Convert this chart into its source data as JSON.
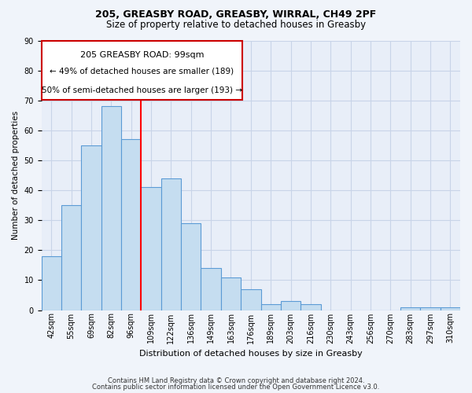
{
  "title1": "205, GREASBY ROAD, GREASBY, WIRRAL, CH49 2PF",
  "title2": "Size of property relative to detached houses in Greasby",
  "xlabel": "Distribution of detached houses by size in Greasby",
  "ylabel": "Number of detached properties",
  "categories": [
    "42sqm",
    "55sqm",
    "69sqm",
    "82sqm",
    "96sqm",
    "109sqm",
    "122sqm",
    "136sqm",
    "149sqm",
    "163sqm",
    "176sqm",
    "189sqm",
    "203sqm",
    "216sqm",
    "230sqm",
    "243sqm",
    "256sqm",
    "270sqm",
    "283sqm",
    "297sqm",
    "310sqm"
  ],
  "values": [
    18,
    35,
    55,
    68,
    57,
    41,
    44,
    29,
    14,
    11,
    7,
    2,
    3,
    2,
    0,
    0,
    0,
    0,
    1,
    1,
    1
  ],
  "bar_color": "#c5ddf0",
  "bar_edge_color": "#5b9bd5",
  "redline_x": 4.5,
  "ylim": [
    0,
    90
  ],
  "yticks": [
    0,
    10,
    20,
    30,
    40,
    50,
    60,
    70,
    80,
    90
  ],
  "annotation_title": "205 GREASBY ROAD: 99sqm",
  "annotation_line1": "← 49% of detached houses are smaller (189)",
  "annotation_line2": "50% of semi-detached houses are larger (193) →",
  "footer1": "Contains HM Land Registry data © Crown copyright and database right 2024.",
  "footer2": "Contains public sector information licensed under the Open Government Licence v3.0.",
  "bg_color": "#f0f4fa",
  "plot_bg_color": "#e8eef8",
  "grid_color": "#c8d4e8",
  "box_edge_color": "#cc0000",
  "box_face_color": "#ffffff",
  "title1_fontsize": 9,
  "title2_fontsize": 8.5,
  "xlabel_fontsize": 8,
  "ylabel_fontsize": 7.5,
  "tick_fontsize": 7,
  "footer_fontsize": 6,
  "annot_title_fontsize": 8,
  "annot_text_fontsize": 7.5
}
